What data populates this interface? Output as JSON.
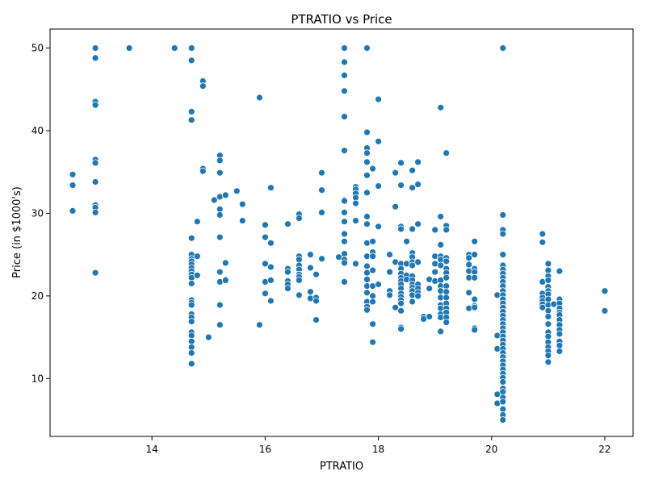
{
  "chart_data": {
    "type": "scatter",
    "title": "PTRATIO vs Price",
    "xlabel": "PTRATIO",
    "ylabel": "Price (in $1000's)",
    "xlim": [
      12.2,
      22.5
    ],
    "ylim": [
      3.0,
      52.3
    ],
    "xticks": [
      14,
      16,
      18,
      20,
      22
    ],
    "yticks": [
      10,
      20,
      30,
      40,
      50
    ],
    "grid": false,
    "colors": {
      "point": "#1f77b4",
      "point_edge": "#ffffff"
    },
    "points": [
      [
        12.6,
        34.7
      ],
      [
        12.6,
        33.4
      ],
      [
        12.6,
        30.3
      ],
      [
        13.0,
        50.0
      ],
      [
        13.0,
        48.8
      ],
      [
        13.0,
        43.5
      ],
      [
        13.0,
        43.1
      ],
      [
        13.0,
        36.5
      ],
      [
        13.0,
        36.1
      ],
      [
        13.0,
        33.8
      ],
      [
        13.0,
        31.0
      ],
      [
        13.0,
        30.7
      ],
      [
        13.0,
        30.1
      ],
      [
        13.0,
        22.8
      ],
      [
        13.6,
        50.0
      ],
      [
        14.4,
        50.0
      ],
      [
        14.7,
        50.0
      ],
      [
        14.7,
        48.5
      ],
      [
        14.7,
        42.3
      ],
      [
        14.7,
        41.3
      ],
      [
        14.7,
        27.0
      ],
      [
        14.7,
        25.0
      ],
      [
        14.7,
        24.5
      ],
      [
        14.7,
        24.2
      ],
      [
        14.7,
        23.8
      ],
      [
        14.7,
        23.4
      ],
      [
        14.7,
        23.0
      ],
      [
        14.7,
        22.6
      ],
      [
        14.7,
        22.2
      ],
      [
        14.7,
        21.5
      ],
      [
        14.7,
        19.5
      ],
      [
        14.7,
        19.2
      ],
      [
        14.7,
        18.9
      ],
      [
        14.7,
        17.8
      ],
      [
        14.7,
        17.4
      ],
      [
        14.7,
        16.9
      ],
      [
        14.7,
        15.6
      ],
      [
        14.7,
        15.2
      ],
      [
        14.7,
        14.5
      ],
      [
        14.7,
        13.8
      ],
      [
        14.7,
        13.1
      ],
      [
        14.7,
        11.8
      ],
      [
        14.8,
        29.0
      ],
      [
        14.8,
        24.8
      ],
      [
        14.8,
        22.5
      ],
      [
        14.9,
        46.0
      ],
      [
        14.9,
        45.4
      ],
      [
        14.9,
        35.4
      ],
      [
        14.9,
        35.1
      ],
      [
        15.1,
        31.6
      ],
      [
        15.2,
        37.0
      ],
      [
        15.2,
        36.4
      ],
      [
        15.2,
        34.9
      ],
      [
        15.2,
        32.0
      ],
      [
        15.2,
        30.5
      ],
      [
        15.2,
        29.8
      ],
      [
        15.2,
        27.1
      ],
      [
        15.2,
        22.9
      ],
      [
        15.2,
        21.7
      ],
      [
        15.2,
        18.9
      ],
      [
        15.2,
        16.5
      ],
      [
        15.0,
        15.0
      ],
      [
        15.3,
        32.2
      ],
      [
        15.3,
        24.0
      ],
      [
        15.3,
        22.0
      ],
      [
        15.3,
        21.9
      ],
      [
        15.5,
        32.7
      ],
      [
        15.6,
        31.1
      ],
      [
        15.6,
        29.1
      ],
      [
        15.9,
        44.0
      ],
      [
        15.9,
        16.5
      ],
      [
        16.0,
        28.6
      ],
      [
        16.0,
        27.1
      ],
      [
        16.0,
        23.9
      ],
      [
        16.0,
        21.7
      ],
      [
        16.0,
        20.3
      ],
      [
        16.1,
        33.1
      ],
      [
        16.1,
        26.4
      ],
      [
        16.1,
        23.5
      ],
      [
        16.1,
        21.9
      ],
      [
        16.1,
        19.4
      ],
      [
        16.4,
        28.7
      ],
      [
        16.4,
        23.3
      ],
      [
        16.4,
        22.9
      ],
      [
        16.4,
        21.8
      ],
      [
        16.4,
        21.4
      ],
      [
        16.4,
        20.9
      ],
      [
        16.6,
        29.9
      ],
      [
        16.6,
        29.4
      ],
      [
        16.6,
        24.8
      ],
      [
        16.6,
        24.4
      ],
      [
        16.6,
        23.7
      ],
      [
        16.6,
        23.2
      ],
      [
        16.6,
        22.6
      ],
      [
        16.6,
        22.3
      ],
      [
        16.6,
        21.9
      ],
      [
        16.6,
        20.1
      ],
      [
        16.8,
        25.0
      ],
      [
        16.8,
        23.4
      ],
      [
        16.8,
        20.5
      ],
      [
        16.8,
        19.7
      ],
      [
        16.9,
        22.6
      ],
      [
        16.9,
        19.8
      ],
      [
        16.9,
        19.4
      ],
      [
        16.9,
        17.1
      ],
      [
        17.0,
        34.9
      ],
      [
        17.0,
        32.8
      ],
      [
        17.0,
        30.1
      ],
      [
        17.0,
        24.5
      ],
      [
        17.3,
        24.7
      ],
      [
        17.4,
        50.0
      ],
      [
        17.4,
        48.3
      ],
      [
        17.4,
        46.7
      ],
      [
        17.4,
        44.8
      ],
      [
        17.4,
        41.7
      ],
      [
        17.4,
        37.6
      ],
      [
        17.4,
        31.6
      ],
      [
        17.4,
        31.5
      ],
      [
        17.4,
        30.1
      ],
      [
        17.4,
        29.0
      ],
      [
        17.4,
        27.5
      ],
      [
        17.4,
        26.6
      ],
      [
        17.4,
        25.1
      ],
      [
        17.4,
        24.4
      ],
      [
        17.4,
        24.0
      ],
      [
        17.4,
        21.7
      ],
      [
        17.6,
        33.2
      ],
      [
        17.6,
        32.9
      ],
      [
        17.6,
        32.4
      ],
      [
        17.6,
        31.9
      ],
      [
        17.6,
        31.2
      ],
      [
        17.6,
        29.1
      ],
      [
        17.6,
        23.9
      ],
      [
        17.8,
        50.0
      ],
      [
        17.8,
        39.8
      ],
      [
        17.8,
        37.9
      ],
      [
        17.8,
        37.3
      ],
      [
        17.8,
        36.2
      ],
      [
        17.8,
        34.6
      ],
      [
        17.8,
        32.5
      ],
      [
        17.8,
        29.6
      ],
      [
        17.8,
        28.7
      ],
      [
        17.8,
        26.4
      ],
      [
        17.8,
        24.8
      ],
      [
        17.8,
        23.6
      ],
      [
        17.8,
        22.8
      ],
      [
        17.8,
        22.0
      ],
      [
        17.8,
        21.2
      ],
      [
        17.8,
        20.4
      ],
      [
        17.8,
        19.3
      ],
      [
        17.8,
        18.7
      ],
      [
        17.8,
        18.3
      ],
      [
        17.9,
        35.4
      ],
      [
        17.9,
        26.6
      ],
      [
        17.9,
        25.3
      ],
      [
        17.9,
        24.8
      ],
      [
        17.9,
        23.1
      ],
      [
        17.9,
        21.2
      ],
      [
        17.9,
        20.0
      ],
      [
        17.9,
        19.3
      ],
      [
        17.9,
        16.6
      ],
      [
        17.9,
        14.4
      ],
      [
        18.0,
        43.8
      ],
      [
        18.0,
        38.7
      ],
      [
        18.0,
        33.3
      ],
      [
        18.0,
        28.4
      ],
      [
        18.0,
        21.4
      ],
      [
        18.2,
        25.0
      ],
      [
        18.2,
        22.9
      ],
      [
        18.2,
        20.6
      ],
      [
        18.2,
        20.1
      ],
      [
        18.3,
        34.9
      ],
      [
        18.3,
        30.8
      ],
      [
        18.3,
        24.1
      ],
      [
        18.3,
        18.6
      ],
      [
        18.4,
        36.1
      ],
      [
        18.4,
        33.4
      ],
      [
        18.4,
        28.4
      ],
      [
        18.4,
        28.1
      ],
      [
        18.4,
        23.9
      ],
      [
        18.4,
        23.3
      ],
      [
        18.4,
        22.7
      ],
      [
        18.4,
        22.2
      ],
      [
        18.4,
        21.8
      ],
      [
        18.4,
        21.4
      ],
      [
        18.4,
        20.9
      ],
      [
        18.4,
        20.3
      ],
      [
        18.4,
        19.9
      ],
      [
        18.4,
        19.5
      ],
      [
        18.4,
        19.1
      ],
      [
        18.4,
        18.2
      ],
      [
        18.4,
        16.2
      ],
      [
        18.4,
        16.0
      ],
      [
        18.5,
        26.6
      ],
      [
        18.5,
        23.9
      ],
      [
        18.5,
        22.5
      ],
      [
        18.5,
        22.0
      ],
      [
        18.6,
        35.2
      ],
      [
        18.6,
        33.1
      ],
      [
        18.6,
        28.1
      ],
      [
        18.6,
        25.2
      ],
      [
        18.6,
        24.7
      ],
      [
        18.6,
        24.1
      ],
      [
        18.6,
        23.7
      ],
      [
        18.6,
        22.4
      ],
      [
        18.6,
        21.9
      ],
      [
        18.6,
        21.4
      ],
      [
        18.6,
        21.0
      ],
      [
        18.6,
        20.6
      ],
      [
        18.6,
        20.1
      ],
      [
        18.6,
        19.3
      ],
      [
        18.7,
        36.2
      ],
      [
        18.7,
        33.5
      ],
      [
        18.7,
        28.7
      ],
      [
        18.7,
        24.1
      ],
      [
        18.7,
        21.4
      ],
      [
        18.7,
        20.9
      ],
      [
        18.7,
        20.4
      ],
      [
        18.7,
        20.0
      ],
      [
        18.8,
        17.5
      ],
      [
        18.8,
        17.2
      ],
      [
        18.9,
        22.0
      ],
      [
        18.9,
        20.9
      ],
      [
        18.9,
        17.5
      ],
      [
        19.0,
        28.0
      ],
      [
        19.0,
        24.8
      ],
      [
        19.0,
        23.9
      ],
      [
        19.0,
        22.9
      ],
      [
        19.0,
        21.8
      ],
      [
        19.1,
        42.8
      ],
      [
        19.1,
        29.6
      ],
      [
        19.1,
        26.2
      ],
      [
        19.1,
        24.8
      ],
      [
        19.1,
        24.4
      ],
      [
        19.1,
        23.7
      ],
      [
        19.1,
        21.9
      ],
      [
        19.1,
        21.2
      ],
      [
        19.1,
        20.6
      ],
      [
        19.1,
        19.8
      ],
      [
        19.1,
        18.9
      ],
      [
        19.1,
        18.5
      ],
      [
        19.1,
        17.8
      ],
      [
        19.1,
        17.4
      ],
      [
        19.1,
        15.7
      ],
      [
        19.2,
        37.3
      ],
      [
        19.2,
        28.5
      ],
      [
        19.2,
        28.0
      ],
      [
        19.2,
        24.6
      ],
      [
        19.2,
        24.2
      ],
      [
        19.2,
        23.3
      ],
      [
        19.2,
        22.8
      ],
      [
        19.2,
        22.2
      ],
      [
        19.2,
        21.2
      ],
      [
        19.2,
        20.5
      ],
      [
        19.2,
        19.8
      ],
      [
        19.2,
        19.1
      ],
      [
        19.2,
        18.5
      ],
      [
        19.2,
        18.0
      ],
      [
        19.2,
        17.4
      ],
      [
        19.2,
        16.8
      ],
      [
        19.6,
        25.0
      ],
      [
        19.6,
        24.6
      ],
      [
        19.6,
        23.8
      ],
      [
        19.6,
        23.0
      ],
      [
        19.6,
        22.2
      ],
      [
        19.6,
        20.4
      ],
      [
        19.6,
        18.5
      ],
      [
        19.7,
        26.6
      ],
      [
        19.7,
        25.0
      ],
      [
        19.7,
        23.3
      ],
      [
        19.7,
        22.9
      ],
      [
        19.7,
        22.2
      ],
      [
        19.7,
        19.6
      ],
      [
        19.7,
        18.8
      ],
      [
        19.7,
        18.6
      ],
      [
        19.7,
        16.1
      ],
      [
        19.7,
        15.9
      ],
      [
        20.1,
        20.1
      ],
      [
        20.1,
        15.2
      ],
      [
        20.1,
        13.6
      ],
      [
        20.1,
        8.1
      ],
      [
        20.1,
        7.0
      ],
      [
        20.2,
        50.0
      ],
      [
        20.2,
        29.8
      ],
      [
        20.2,
        28.0
      ],
      [
        20.2,
        27.5
      ],
      [
        20.2,
        25.0
      ],
      [
        20.2,
        23.7
      ],
      [
        20.2,
        23.2
      ],
      [
        20.2,
        22.7
      ],
      [
        20.2,
        22.2
      ],
      [
        20.2,
        21.7
      ],
      [
        20.2,
        21.2
      ],
      [
        20.2,
        20.6
      ],
      [
        20.2,
        20.1
      ],
      [
        20.2,
        19.6
      ],
      [
        20.2,
        19.1
      ],
      [
        20.2,
        18.6
      ],
      [
        20.2,
        18.1
      ],
      [
        20.2,
        17.6
      ],
      [
        20.2,
        17.1
      ],
      [
        20.2,
        16.6
      ],
      [
        20.2,
        16.1
      ],
      [
        20.2,
        15.6
      ],
      [
        20.2,
        15.1
      ],
      [
        20.2,
        14.6
      ],
      [
        20.2,
        14.1
      ],
      [
        20.2,
        13.6
      ],
      [
        20.2,
        13.1
      ],
      [
        20.2,
        12.6
      ],
      [
        20.2,
        12.1
      ],
      [
        20.2,
        11.6
      ],
      [
        20.2,
        11.1
      ],
      [
        20.2,
        10.6
      ],
      [
        20.2,
        10.1
      ],
      [
        20.2,
        9.6
      ],
      [
        20.2,
        8.8
      ],
      [
        20.2,
        8.4
      ],
      [
        20.2,
        7.7
      ],
      [
        20.2,
        7.2
      ],
      [
        20.2,
        6.3
      ],
      [
        20.2,
        5.6
      ],
      [
        20.2,
        5.0
      ],
      [
        20.9,
        27.5
      ],
      [
        20.9,
        26.5
      ],
      [
        20.9,
        21.7
      ],
      [
        20.9,
        20.3
      ],
      [
        20.9,
        19.8
      ],
      [
        20.9,
        19.4
      ],
      [
        20.9,
        19.0
      ],
      [
        20.9,
        18.6
      ],
      [
        21.0,
        23.9
      ],
      [
        21.0,
        23.1
      ],
      [
        21.0,
        22.4
      ],
      [
        21.0,
        21.9
      ],
      [
        21.0,
        21.1
      ],
      [
        21.0,
        20.6
      ],
      [
        21.0,
        20.2
      ],
      [
        21.0,
        19.6
      ],
      [
        21.0,
        18.9
      ],
      [
        21.0,
        18.2
      ],
      [
        21.0,
        17.5
      ],
      [
        21.0,
        16.6
      ],
      [
        21.0,
        15.6
      ],
      [
        21.0,
        15.1
      ],
      [
        21.0,
        14.4
      ],
      [
        21.0,
        13.8
      ],
      [
        21.0,
        13.3
      ],
      [
        21.0,
        12.8
      ],
      [
        21.0,
        12.0
      ],
      [
        21.1,
        19.0
      ],
      [
        21.2,
        23.0
      ],
      [
        21.2,
        19.6
      ],
      [
        21.2,
        19.1
      ],
      [
        21.2,
        18.5
      ],
      [
        21.2,
        18.0
      ],
      [
        21.2,
        17.7
      ],
      [
        21.2,
        17.1
      ],
      [
        21.2,
        16.5
      ],
      [
        21.2,
        15.9
      ],
      [
        21.2,
        15.4
      ],
      [
        21.2,
        14.5
      ],
      [
        21.2,
        14.0
      ],
      [
        21.2,
        13.3
      ],
      [
        22.0,
        20.6
      ],
      [
        22.0,
        18.2
      ]
    ]
  }
}
